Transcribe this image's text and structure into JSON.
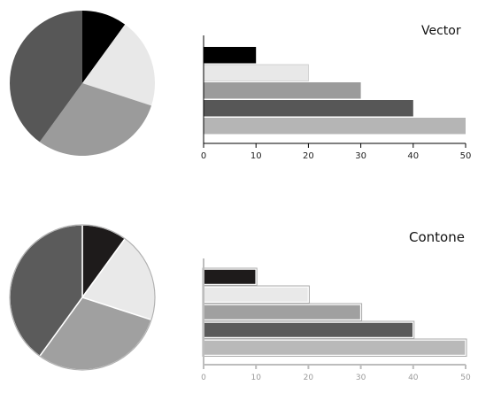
{
  "labels": {
    "vector": "Vector",
    "contone": "Contone"
  },
  "chart_data": [
    {
      "type": "pie",
      "title": "",
      "panel": "vector",
      "slices": [
        {
          "value": 10,
          "color": "#000000"
        },
        {
          "value": 20,
          "color": "#e8e8e8"
        },
        {
          "value": 30,
          "color": "#9b9b9b"
        },
        {
          "value": 40,
          "color": "#575757"
        }
      ]
    },
    {
      "type": "bar",
      "title": "Vector",
      "orientation": "horizontal",
      "values": [
        10,
        20,
        30,
        40,
        50
      ],
      "colors": [
        "#000000",
        "#e8e8e8",
        "#9b9b9b",
        "#575757",
        "#b5b5b5"
      ],
      "xlim": [
        0,
        50
      ],
      "xticks": [
        0,
        10,
        20,
        30,
        40,
        50
      ],
      "xticklabels": [
        "0",
        "10",
        "20",
        "30",
        "40",
        "50"
      ],
      "grid": false
    },
    {
      "type": "pie",
      "title": "",
      "panel": "contone",
      "slices": [
        {
          "value": 10,
          "color": "#1e1b1b"
        },
        {
          "value": 20,
          "color": "#e9e9e9"
        },
        {
          "value": 30,
          "color": "#a0a0a0"
        },
        {
          "value": 40,
          "color": "#5b5b5b"
        }
      ]
    },
    {
      "type": "bar",
      "title": "Contone",
      "orientation": "horizontal",
      "values": [
        10,
        20,
        30,
        40,
        50
      ],
      "colors": [
        "#1e1b1b",
        "#e9e9e9",
        "#a0a0a0",
        "#5b5b5b",
        "#b9b9b9"
      ],
      "xlim": [
        0,
        50
      ],
      "xticks": [
        0,
        10,
        20,
        30,
        40,
        50
      ],
      "xticklabels": [
        "0",
        "10",
        "20",
        "30",
        "40",
        "50"
      ],
      "grid": false
    }
  ]
}
